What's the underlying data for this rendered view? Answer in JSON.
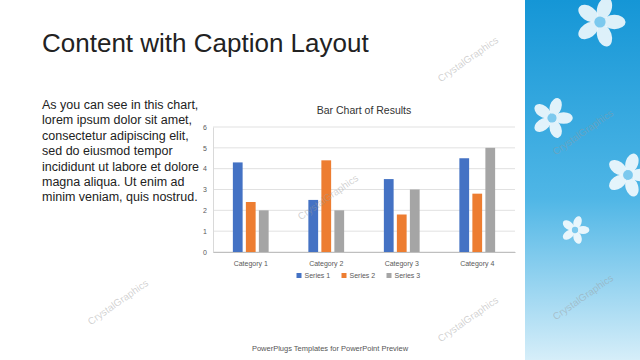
{
  "slide": {
    "title": "Content with Caption Layout",
    "caption": "As you can see in this chart, lorem ipsum dolor sit amet, consectetur adipiscing elit, sed do eiusmod tempor incididunt ut labore et dolore magna aliqua. Ut enim ad minim veniam, quis nostrud.",
    "footer": "PowerPlugs Templates for PowerPoint Preview",
    "watermark": "CrystalGraphics"
  },
  "chart_data": {
    "type": "bar",
    "title": "Bar Chart of Results",
    "categories": [
      "Category 1",
      "Category 2",
      "Category 3",
      "Category 4"
    ],
    "series": [
      {
        "name": "Series 1",
        "color": "#4472c4",
        "values": [
          4.3,
          2.5,
          3.5,
          4.5
        ]
      },
      {
        "name": "Series 2",
        "color": "#ed7d31",
        "values": [
          2.4,
          4.4,
          1.8,
          2.8
        ]
      },
      {
        "name": "Series 3",
        "color": "#a5a5a5",
        "values": [
          2,
          2,
          3,
          5
        ]
      }
    ],
    "ylim": [
      0,
      6
    ],
    "yticks": [
      0,
      1,
      2,
      3,
      4,
      5,
      6
    ],
    "grid": true,
    "legend": "bottom"
  }
}
